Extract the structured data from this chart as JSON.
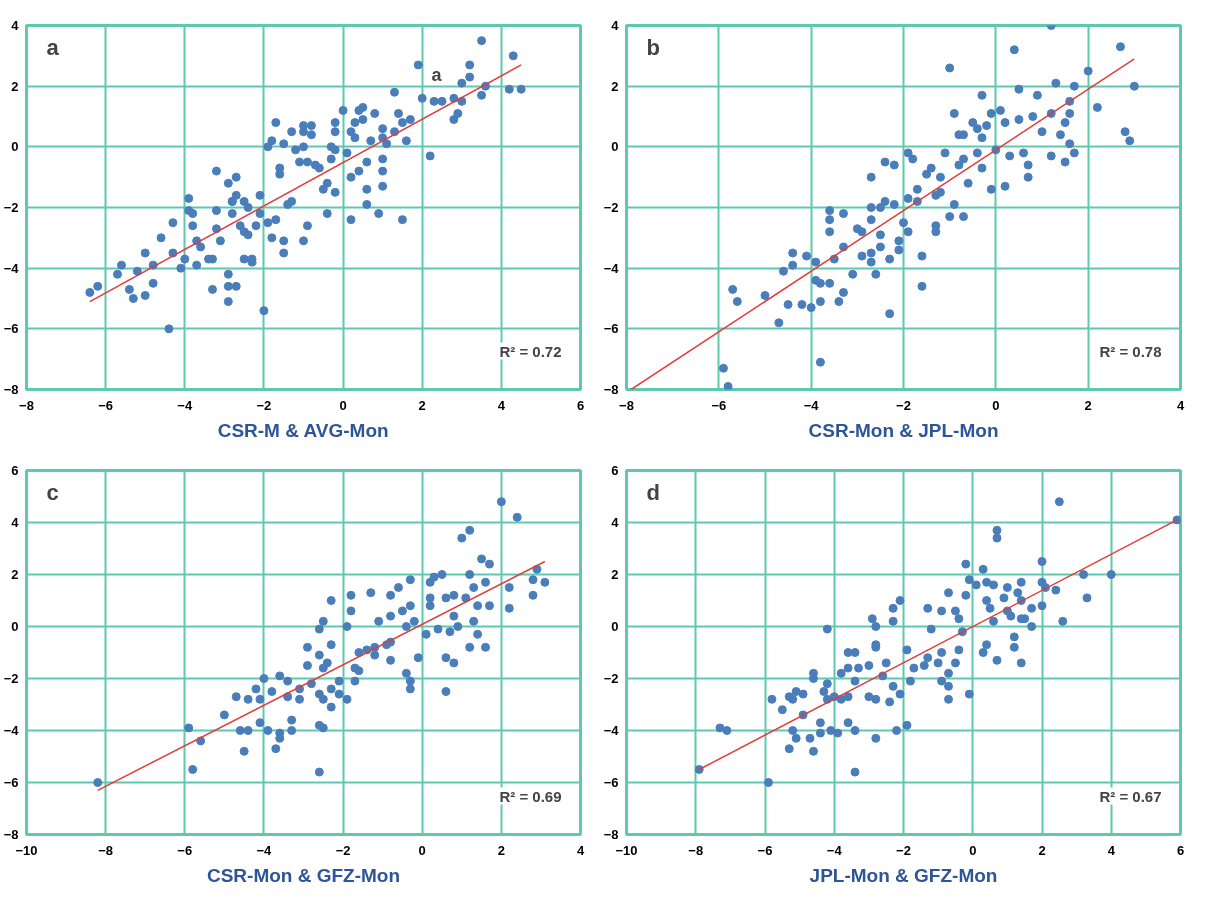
{
  "chart_data": [
    {
      "type": "scatter",
      "xlabel": "CSR-M & AVG-Mon",
      "annotations": [
        "a",
        "R² = 0.72",
        "a"
      ],
      "xlim": [
        -8,
        6
      ],
      "ylim": [
        -8,
        4
      ],
      "xticks": [
        -8,
        -6,
        -4,
        -2,
        0,
        2,
        4,
        6
      ],
      "yticks": [
        -8,
        -6,
        -4,
        -2,
        0,
        2,
        4
      ],
      "grid": true,
      "series": [
        {
          "marker": "circle",
          "color": "#4a7ebb",
          "x": [
            -6.4,
            -6.2,
            -5.7,
            -5.6,
            -5.4,
            -5.3,
            -5.2,
            -5.0,
            -5.0,
            -4.8,
            -4.8,
            -4.6,
            -4.4,
            -4.3,
            -4.3,
            -4.1,
            -4.0,
            -3.9,
            -3.9,
            -3.8,
            -3.8,
            -3.7,
            -3.7,
            -3.6,
            -3.4,
            -3.3,
            -3.3,
            -3.2,
            -3.2,
            -3.2,
            -3.1,
            -2.9,
            -2.9,
            -2.9,
            -2.9,
            -2.8,
            -2.8,
            -2.8,
            -2.7,
            -2.7,
            -2.7,
            -2.6,
            -2.5,
            -2.5,
            -2.5,
            -2.4,
            -2.4,
            -2.3,
            -2.3,
            -2.2,
            -2.1,
            -2.1,
            -2.0,
            -1.9,
            -1.8,
            -1.9,
            -1.8,
            -1.7,
            -1.7,
            -1.6,
            -1.6,
            -1.5,
            -1.5,
            -1.5,
            -1.4,
            -1.3,
            -1.3,
            -1.2,
            -1.1,
            -1.0,
            -1.0,
            -1.0,
            -1.0,
            -0.9,
            -0.9,
            -0.8,
            -0.8,
            -0.7,
            -0.6,
            -0.5,
            -0.4,
            -0.4,
            -0.3,
            -0.3,
            -0.2,
            -0.2,
            -0.2,
            -0.2,
            0.0,
            0.1,
            0.2,
            0.2,
            0.2,
            0.3,
            0.3,
            0.4,
            0.4,
            0.5,
            0.5,
            0.6,
            0.6,
            0.6,
            0.7,
            0.8,
            0.9,
            1.0,
            1.0,
            1.0,
            1.0,
            1.0,
            1.1,
            1.3,
            1.3,
            1.4,
            1.5,
            1.5,
            1.6,
            1.7,
            1.9,
            2.0,
            2.2,
            2.3,
            2.5,
            2.8,
            2.8,
            2.9,
            3.0,
            3.0,
            3.2,
            3.2,
            3.5,
            3.5,
            3.6,
            4.2,
            4.3,
            4.5
          ],
          "values": [
            -4.8,
            -4.6,
            -4.2,
            -3.9,
            -4.7,
            -5.0,
            -4.1,
            -3.5,
            -4.9,
            -4.5,
            -3.9,
            -3.0,
            -6.0,
            -3.5,
            -2.5,
            -4.0,
            -3.7,
            -1.7,
            -2.1,
            -2.6,
            -2.2,
            -3.9,
            -3.1,
            -3.3,
            -3.7,
            -3.7,
            -4.7,
            -2.1,
            -2.7,
            -0.8,
            -3.1,
            -4.6,
            -5.1,
            -4.2,
            -1.2,
            -1.8,
            -2.2,
            -1.8,
            -4.6,
            -1.0,
            -1.6,
            -2.6,
            -1.8,
            -2.8,
            -3.7,
            -2.9,
            -2.0,
            -3.8,
            -3.7,
            -2.6,
            -2.2,
            -1.6,
            -5.4,
            -2.5,
            -3.0,
            0.0,
            0.2,
            0.8,
            -2.4,
            -0.7,
            -0.9,
            0.1,
            -3.5,
            -3.1,
            -1.9,
            -1.8,
            0.5,
            -0.1,
            -0.5,
            0.5,
            -3.1,
            0.7,
            0.0,
            -2.6,
            -0.5,
            0.7,
            0.4,
            -0.6,
            -0.7,
            -1.4,
            -2.2,
            -1.2,
            -0.4,
            0.0,
            0.8,
            -0.1,
            -1.5,
            0.5,
            1.2,
            -0.2,
            -1.0,
            -2.4,
            0.5,
            0.8,
            0.3,
            -0.8,
            1.2,
            1.3,
            0.9,
            -1.4,
            -1.9,
            -0.5,
            0.2,
            1.1,
            -2.2,
            0.3,
            0.6,
            -0.4,
            -0.8,
            -1.3,
            0.1,
            1.8,
            0.5,
            1.1,
            0.8,
            -2.4,
            0.2,
            0.9,
            2.7,
            1.6,
            -0.3,
            1.5,
            1.5,
            1.6,
            0.9,
            1.1,
            1.5,
            2.1,
            2.7,
            2.3,
            1.7,
            3.5,
            2.0,
            1.9,
            3.0,
            1.9
          ]
        },
        {
          "type": "line",
          "color": "#e03c3c",
          "x": [
            -6.4,
            4.5
          ],
          "values": [
            -5.1,
            2.7
          ]
        }
      ]
    },
    {
      "type": "scatter",
      "xlabel": "CSR-Mon & JPL-Mon",
      "annotations": [
        "b",
        "R² = 0.78"
      ],
      "xlim": [
        -8,
        4
      ],
      "ylim": [
        -8,
        4
      ],
      "xticks": [
        -8,
        -6,
        -4,
        -2,
        0,
        2,
        4
      ],
      "yticks": [
        -8,
        -6,
        -4,
        -2,
        0,
        2,
        4
      ],
      "grid": true,
      "series": [
        {
          "marker": "circle",
          "color": "#4a7ebb",
          "x": [
            1.2,
            0.4,
            2.7,
            -1.0,
            -0.3,
            0.5,
            -0.9,
            -0.1,
            0.1,
            0.9,
            1.3,
            1.7,
            2.0,
            2.2,
            3.0,
            2.8,
            2.9,
            -0.5,
            -0.4,
            -0.2,
            -0.8,
            -0.7,
            -0.3,
            0.2,
            0.5,
            0.8,
            1.0,
            1.2,
            1.4,
            1.6,
            1.6,
            1.5,
            1.6,
            1.7,
            1.2,
            1.5,
            0.7,
            0.7,
            0.6,
            0.3,
            0.0,
            -0.4,
            -0.7,
            -0.8,
            -0.3,
            -0.6,
            -0.1,
            0.2,
            -1.1,
            -1.4,
            -1.5,
            -1.2,
            -1.9,
            -1.8,
            -2.4,
            -2.2,
            -1.7,
            -1.9,
            -1.7,
            -1.3,
            -1.2,
            -0.9,
            -0.7,
            -1.0,
            -1.3,
            -1.3,
            -2.7,
            -2.7,
            -2.5,
            -2.4,
            -2.2,
            -2.7,
            -2.0,
            -1.9,
            -2.1,
            -2.1,
            -2.3,
            -1.6,
            -1.6,
            -2.3,
            -2.5,
            -2.5,
            -2.7,
            -2.7,
            -2.6,
            -2.9,
            -3.0,
            -2.9,
            -3.6,
            -3.6,
            -3.3,
            -3.6,
            -3.3,
            -3.5,
            -3.1,
            -3.3,
            -3.4,
            -3.8,
            -3.8,
            -3.6,
            -3.8,
            -3.9,
            -3.9,
            -4.1,
            -4.4,
            -4.4,
            -4.6,
            -4.5,
            -4.2,
            -4.0,
            -4.7,
            -5.0,
            -5.7,
            -5.6,
            -5.9,
            -5.8
          ],
          "values": [
            4.0,
            3.2,
            3.3,
            2.6,
            1.7,
            1.9,
            1.1,
            1.1,
            1.2,
            1.7,
            2.1,
            2.0,
            2.5,
            1.3,
            2.0,
            0.5,
            0.2,
            0.8,
            0.6,
            0.7,
            0.4,
            0.4,
            0.3,
            0.8,
            0.9,
            1.0,
            0.5,
            1.1,
            0.4,
            1.5,
            1.1,
            0.8,
            0.1,
            -0.2,
            -0.3,
            -0.5,
            -0.6,
            -1.0,
            -0.2,
            -0.3,
            -0.1,
            -0.2,
            -0.4,
            -0.6,
            -0.7,
            -1.2,
            -1.4,
            -1.3,
            -0.2,
            -0.7,
            -0.9,
            -1.0,
            -0.2,
            -0.4,
            -0.5,
            -0.6,
            -1.4,
            -1.7,
            -1.8,
            -1.6,
            -1.5,
            -1.9,
            -2.3,
            -2.3,
            -2.6,
            -2.8,
            -1.0,
            -2.0,
            -2.0,
            -1.8,
            -1.9,
            -2.4,
            -2.5,
            -2.8,
            -3.1,
            -3.4,
            -3.7,
            -3.6,
            -4.6,
            -5.5,
            -2.9,
            -3.3,
            -3.5,
            -3.8,
            -4.2,
            -3.6,
            -2.7,
            -2.8,
            -2.1,
            -2.4,
            -2.2,
            -2.8,
            -3.3,
            -3.7,
            -4.2,
            -4.8,
            -5.1,
            -5.1,
            -7.1,
            -4.5,
            -4.5,
            -4.4,
            -3.8,
            -3.6,
            -3.5,
            -3.9,
            -4.1,
            -5.2,
            -5.2,
            -5.3,
            -5.8,
            -4.9,
            -4.7,
            -5.1,
            -7.3,
            -7.9
          ]
        },
        {
          "type": "line",
          "color": "#e03c3c",
          "x": [
            -7.9,
            3.0
          ],
          "values": [
            -8.0,
            2.9
          ]
        }
      ]
    },
    {
      "type": "scatter",
      "xlabel": "CSR-Mon & GFZ-Mon",
      "annotations": [
        "c",
        "R² = 0.69"
      ],
      "xlim": [
        -10,
        4
      ],
      "ylim": [
        -8,
        6
      ],
      "xticks": [
        -10,
        -8,
        -6,
        -4,
        -2,
        0,
        2,
        4
      ],
      "yticks": [
        -8,
        -6,
        -4,
        -2,
        0,
        2,
        4,
        6
      ],
      "grid": true,
      "series": [
        {
          "marker": "circle",
          "color": "#4a7ebb",
          "x": [
            2.0,
            2.4,
            1.0,
            1.2,
            1.5,
            1.7,
            -0.3,
            -0.6,
            0.2,
            0.3,
            0.5,
            1.2,
            2.9,
            2.8,
            3.1,
            2.8,
            2.2,
            2.2,
            1.6,
            1.3,
            1.7,
            1.4,
            1.1,
            0.8,
            0.6,
            0.2,
            0.2,
            0.8,
            0.9,
            0.7,
            0.4,
            0.1,
            1.3,
            1.4,
            1.2,
            1.6,
            0.6,
            0.8,
            0.6,
            -0.1,
            -0.3,
            -0.3,
            -0.4,
            -0.8,
            -0.8,
            -0.5,
            -0.3,
            -0.2,
            -0.4,
            -1.1,
            -1.3,
            -1.8,
            -1.8,
            -1.9,
            -2.3,
            -2.5,
            -2.6,
            -0.8,
            -0.9,
            -1.2,
            -1.2,
            -0.8,
            -1.4,
            -1.6,
            -1.7,
            -1.6,
            -1.7,
            -1.9,
            -2.1,
            -2.1,
            -2.3,
            -2.3,
            -2.3,
            -2.4,
            -2.5,
            -2.6,
            -2.9,
            -2.9,
            -2.8,
            -2.6,
            -2.5,
            -2.6,
            -2.5,
            -2.6,
            -3.1,
            -3.1,
            -3.4,
            -3.4,
            -3.3,
            -3.3,
            -3.6,
            -3.6,
            -3.7,
            -3.6,
            -4.0,
            -3.9,
            -3.8,
            -4.2,
            -4.1,
            -4.1,
            -4.4,
            -4.6,
            -4.5,
            -4.4,
            -4.7,
            -5.0,
            -5.9,
            -5.6,
            -5.8,
            -8.2
          ],
          "values": [
            4.8,
            4.2,
            3.4,
            3.7,
            2.6,
            2.4,
            1.8,
            1.5,
            1.7,
            1.9,
            2.0,
            2.0,
            2.2,
            1.8,
            1.7,
            1.2,
            1.5,
            0.7,
            1.7,
            1.5,
            0.8,
            0.8,
            1.1,
            1.2,
            1.1,
            0.8,
            1.1,
            0.4,
            0.0,
            -0.2,
            -0.1,
            -0.3,
            0.2,
            -0.3,
            -0.8,
            -0.8,
            -1.2,
            -1.4,
            -2.5,
            -1.2,
            -2.1,
            -2.4,
            -1.8,
            1.2,
            0.4,
            0.6,
            0.8,
            0.2,
            0.0,
            0.2,
            1.3,
            1.2,
            0.6,
            0.0,
            1.0,
            0.2,
            -0.1,
            -0.6,
            -0.7,
            -0.8,
            -1.1,
            -1.3,
            -0.9,
            -1.0,
            -1.6,
            -1.7,
            -2.1,
            -2.8,
            -2.6,
            -2.1,
            -2.4,
            -3.1,
            -0.7,
            -1.4,
            -1.6,
            -1.1,
            -0.8,
            -1.5,
            -2.2,
            -2.6,
            -2.8,
            -3.8,
            -3.9,
            -5.6,
            -2.4,
            -2.8,
            -2.1,
            -2.7,
            -3.6,
            -4.0,
            -4.1,
            -4.3,
            -4.7,
            -1.9,
            -2.0,
            -4.0,
            -2.5,
            -2.4,
            -2.8,
            -3.7,
            -4.0,
            -4.0,
            -4.8,
            -2.8,
            -2.7,
            -3.4,
            -3.9,
            -4.4,
            -5.5,
            -6.0
          ]
        },
        {
          "type": "line",
          "color": "#e03c3c",
          "x": [
            -8.2,
            3.1
          ],
          "values": [
            -6.3,
            2.5
          ]
        }
      ]
    },
    {
      "type": "scatter",
      "xlabel": "JPL-Mon & GFZ-Mon",
      "annotations": [
        "d",
        "R² = 0.67"
      ],
      "xlim": [
        -10,
        6
      ],
      "ylim": [
        -8,
        6
      ],
      "xticks": [
        -10,
        -8,
        -6,
        -4,
        -2,
        0,
        2,
        4,
        6
      ],
      "yticks": [
        -8,
        -6,
        -4,
        -2,
        0,
        2,
        4,
        6
      ],
      "grid": true,
      "series": [
        {
          "marker": "circle",
          "color": "#4a7ebb",
          "x": [
            2.5,
            5.9,
            0.7,
            0.7,
            -0.2,
            0.3,
            2.0,
            3.2,
            4.0,
            3.3,
            2.6,
            2.4,
            2.1,
            2.0,
            2.0,
            1.7,
            1.7,
            1.4,
            1.4,
            1.3,
            1.0,
            0.9,
            0.6,
            0.4,
            0.1,
            -0.1,
            0.4,
            0.5,
            0.6,
            1.0,
            1.1,
            1.4,
            1.5,
            -0.2,
            -0.7,
            -0.5,
            -0.4,
            -0.3,
            -0.9,
            -1.3,
            -1.2,
            -0.4,
            -0.5,
            -0.7,
            -0.7,
            -0.7,
            -0.1,
            -0.9,
            -1.0,
            -0.9,
            0.4,
            0.3,
            0.7,
            1.2,
            1.2,
            1.4,
            -2.1,
            -2.3,
            -2.3,
            -1.3,
            -1.4,
            -1.7,
            -1.9,
            -1.8,
            -1.9,
            -2.2,
            -2.4,
            -2.1,
            -2.3,
            -2.5,
            -2.6,
            -2.8,
            -2.8,
            -2.9,
            -2.8,
            -3.0,
            -3.3,
            -3.4,
            -3.0,
            -2.8,
            -2.8,
            -3.4,
            -3.6,
            -3.6,
            -3.8,
            -3.6,
            -3.8,
            -4.2,
            -4.2,
            -4.2,
            -4.0,
            -4.3,
            -4.6,
            -4.6,
            -4.4,
            -4.4,
            -4.1,
            -3.9,
            -3.6,
            -3.4,
            -3.4,
            -4.6,
            -4.7,
            -4.9,
            -4.9,
            -5.1,
            -5.2,
            -5.3,
            -5.2,
            -5.1,
            -5.3,
            -5.5,
            -5.8,
            -5.9,
            -7.1,
            -7.3,
            -7.9
          ],
          "values": [
            4.8,
            4.1,
            3.7,
            3.4,
            2.4,
            2.2,
            2.5,
            2.0,
            2.0,
            1.1,
            0.2,
            1.4,
            1.5,
            1.7,
            0.8,
            0.7,
            0.0,
            1.7,
            1.0,
            1.3,
            1.5,
            1.1,
            1.6,
            1.7,
            1.6,
            1.8,
            1.0,
            0.7,
            0.2,
            0.6,
            0.4,
            0.3,
            0.3,
            1.2,
            1.3,
            0.6,
            0.3,
            -0.2,
            0.6,
            0.7,
            -0.1,
            -0.9,
            -1.4,
            -1.8,
            -2.3,
            -2.8,
            -2.6,
            -1.0,
            -1.4,
            -2.1,
            -0.7,
            -1.0,
            -1.3,
            -0.4,
            -0.8,
            -1.4,
            1.0,
            0.7,
            0.2,
            -1.2,
            -1.5,
            -1.6,
            -0.9,
            -2.1,
            -3.8,
            -4.0,
            -2.9,
            -2.6,
            -2.3,
            -1.4,
            -1.9,
            -0.8,
            0.0,
            0.3,
            -0.7,
            -1.5,
            -1.6,
            -2.1,
            -2.7,
            -2.8,
            -4.3,
            -1.0,
            -1.0,
            -1.6,
            -1.8,
            -2.7,
            -2.8,
            -0.1,
            -2.2,
            -2.8,
            -2.7,
            -2.5,
            -2.0,
            -1.8,
            -3.7,
            -4.1,
            -4.0,
            -4.1,
            -3.7,
            -4.0,
            -5.6,
            -4.8,
            -4.3,
            -2.6,
            -3.4,
            -2.5,
            -2.8,
            -2.7,
            -4.0,
            -4.3,
            -4.7,
            -3.2,
            -2.8,
            -6.0,
            -4.0,
            -3.9,
            -5.5
          ]
        },
        {
          "type": "line",
          "color": "#e03c3c",
          "x": [
            -7.9,
            5.9
          ],
          "values": [
            -5.5,
            4.1
          ]
        }
      ]
    }
  ]
}
